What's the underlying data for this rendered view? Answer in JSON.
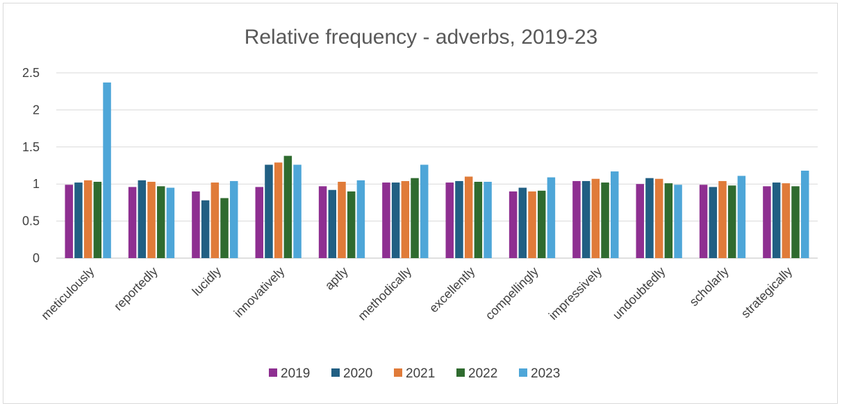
{
  "chart_data": {
    "type": "bar",
    "title": "Relative frequency - adverbs, 2019-23",
    "xlabel": "",
    "ylabel": "",
    "ylim": [
      0,
      2.5
    ],
    "yticks": [
      "0",
      "0.5",
      "1",
      "1.5",
      "2",
      "2.5"
    ],
    "grid": true,
    "legend_position": "bottom",
    "categories": [
      "meticulously",
      "reportedly",
      "lucidly",
      "innovatively",
      "aptly",
      "methodically",
      "excellently",
      "compellingly",
      "impressively",
      "undoubtedly",
      "scholarly",
      "strategically"
    ],
    "series": [
      {
        "name": "2019",
        "color": "#8e2f91",
        "values": [
          0.99,
          0.96,
          0.9,
          0.96,
          0.97,
          1.02,
          1.02,
          0.9,
          1.04,
          1.0,
          0.99,
          0.97
        ]
      },
      {
        "name": "2020",
        "color": "#215f83",
        "values": [
          1.02,
          1.05,
          0.78,
          1.26,
          0.92,
          1.02,
          1.04,
          0.95,
          1.04,
          1.08,
          0.96,
          1.02
        ]
      },
      {
        "name": "2021",
        "color": "#e07b39",
        "values": [
          1.05,
          1.03,
          1.02,
          1.29,
          1.03,
          1.04,
          1.1,
          0.9,
          1.07,
          1.07,
          1.04,
          1.01
        ]
      },
      {
        "name": "2022",
        "color": "#2f6b2f",
        "values": [
          1.03,
          0.97,
          0.81,
          1.38,
          0.9,
          1.08,
          1.03,
          0.91,
          1.02,
          1.01,
          0.98,
          0.97
        ]
      },
      {
        "name": "2023",
        "color": "#4ea6d8",
        "values": [
          2.37,
          0.95,
          1.04,
          1.26,
          1.05,
          1.26,
          1.03,
          1.09,
          1.17,
          0.99,
          1.11,
          1.18
        ]
      }
    ]
  }
}
